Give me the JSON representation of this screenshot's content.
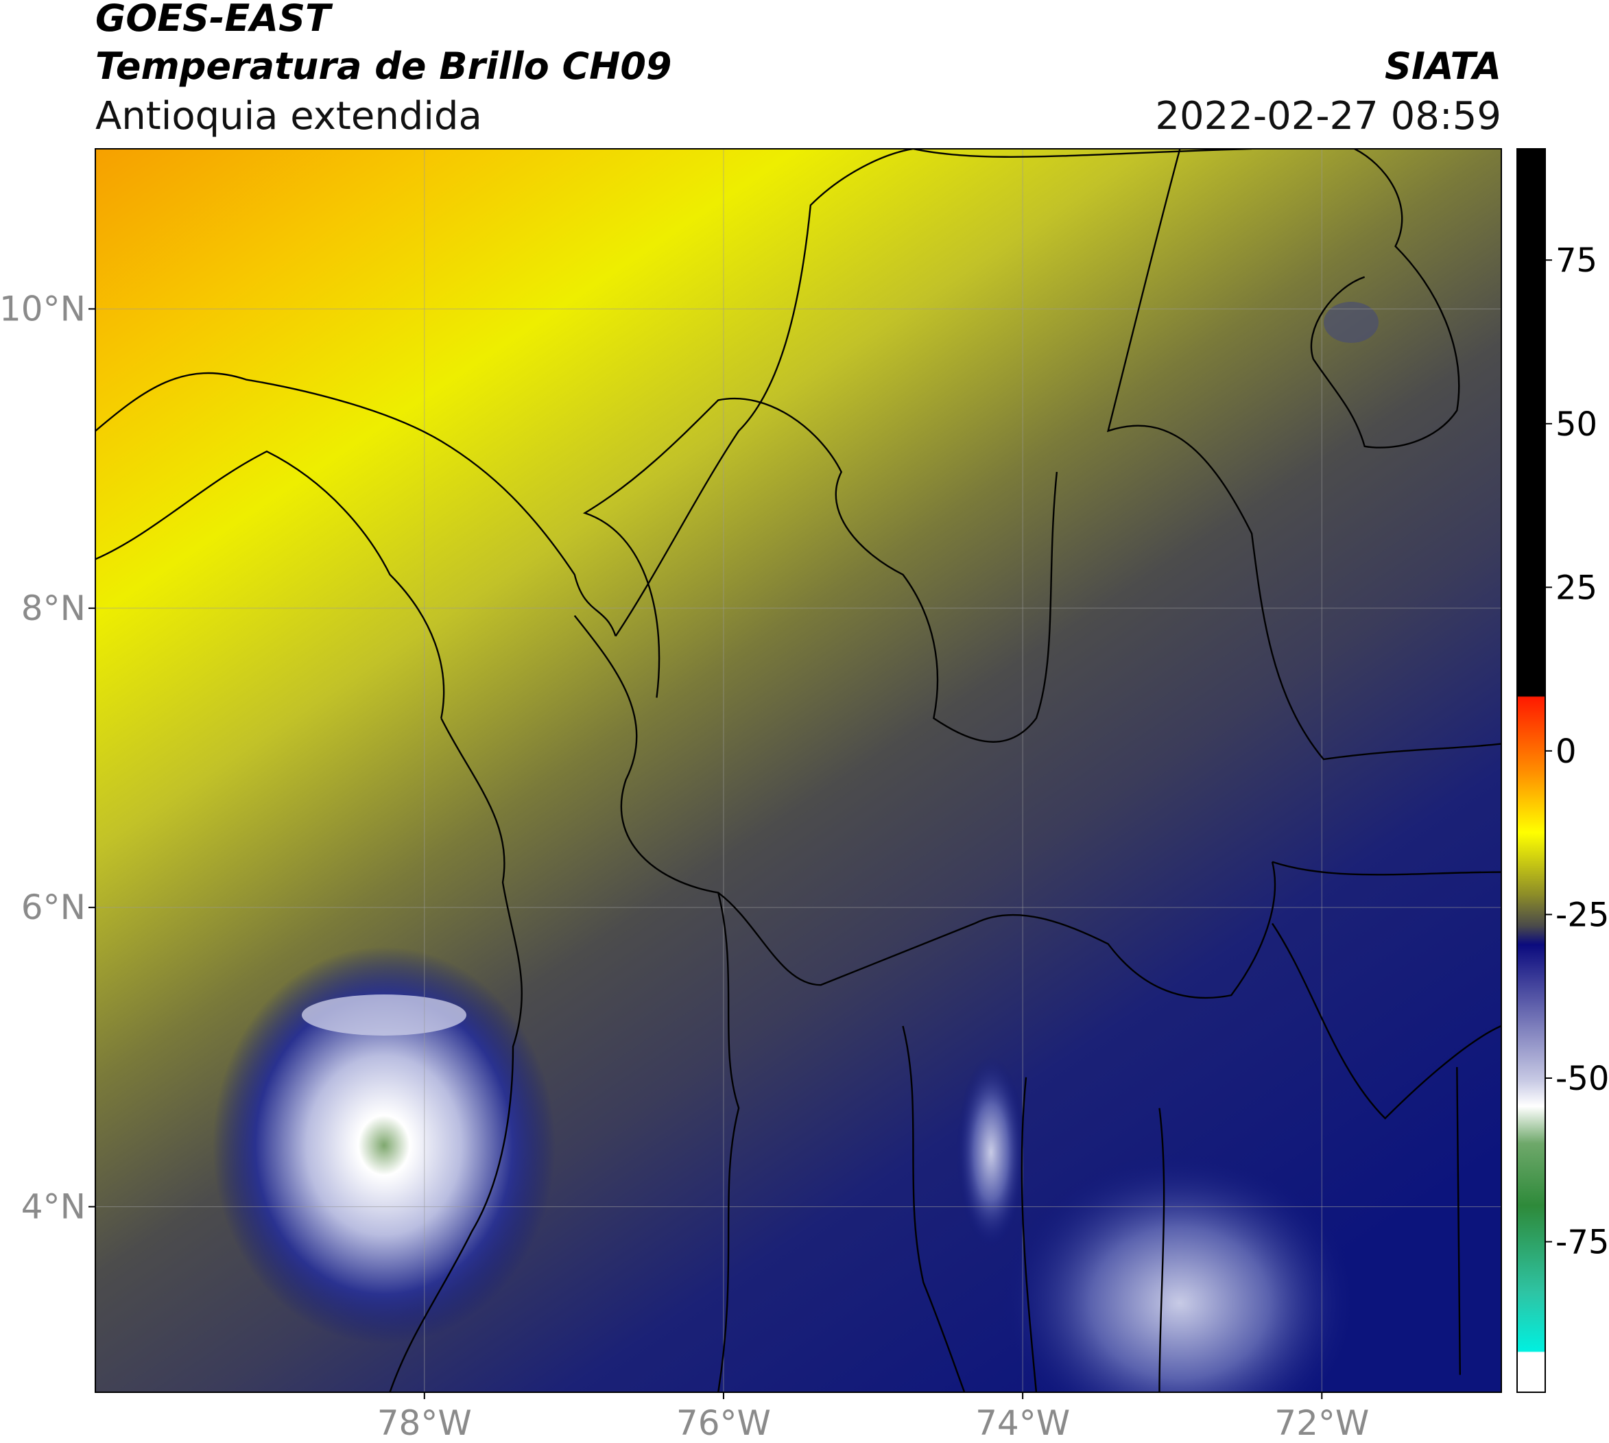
{
  "header": {
    "title": "GOES-EAST",
    "subtitle": "Temperatura de Brillo CH09",
    "region": "Antioquia extendida",
    "source": "SIATA",
    "datetime": "2022-02-27 08:59"
  },
  "map": {
    "xlim": [
      -80.2,
      -70.8
    ],
    "ylim": [
      2.76,
      11.07
    ],
    "xticks": [
      {
        "value": -78,
        "label": "78°W"
      },
      {
        "value": -76,
        "label": "76°W"
      },
      {
        "value": -74,
        "label": "74°W"
      },
      {
        "value": -72,
        "label": "72°W"
      }
    ],
    "yticks": [
      {
        "value": 4,
        "label": "4°N"
      },
      {
        "value": 6,
        "label": "6°N"
      },
      {
        "value": 8,
        "label": "8°N"
      },
      {
        "value": 10,
        "label": "10°N"
      }
    ],
    "grid": true
  },
  "colorbar": {
    "lim": [
      -98,
      92
    ],
    "ticks": [
      -75,
      -50,
      -25,
      0,
      25,
      50,
      75
    ]
  }
}
